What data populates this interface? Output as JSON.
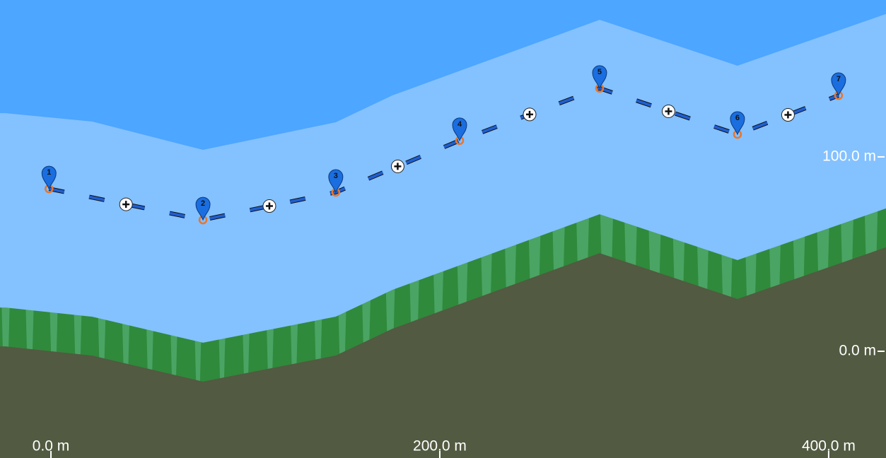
{
  "chart_data": {
    "type": "line",
    "labels": [
      "1",
      "2",
      "3",
      "4",
      "5",
      "6",
      "7"
    ],
    "x": [
      -1,
      78.2,
      146.5,
      210.2,
      282.2,
      353.1,
      405.1
    ],
    "values": [
      83.6,
      67.6,
      81.8,
      108.4,
      135.3,
      111.6,
      131.6
    ],
    "color": "#1f5fd1",
    "terrain": {
      "x": [
        -23.3,
        21.1,
        78.2,
        146.5,
        175.6,
        282.2,
        353.1,
        429.5
      ],
      "ground": [
        2.5,
        -2.2,
        -15.6,
        -2.2,
        11.6,
        50.5,
        26.9,
        53.5
      ],
      "canopy": [
        22.5,
        17.8,
        4.4,
        17.8,
        31.6,
        70.5,
        46.9,
        73.5
      ],
      "ceiling": [
        122.5,
        118.2,
        103.6,
        117.8,
        131.6,
        170.5,
        146.9,
        173.5
      ]
    },
    "xlim": [
      -26.2,
      429.5
    ],
    "ylim": [
      -54.9,
      180.7
    ],
    "xticks": [
      {
        "value": 0,
        "label": "0.0 m"
      },
      {
        "value": 200,
        "label": "200.0 m"
      },
      {
        "value": 400,
        "label": "400.0 m"
      }
    ],
    "yticks": [
      {
        "value": 0,
        "label": "0.0 m"
      },
      {
        "value": 100,
        "label": "100.0 m"
      }
    ]
  }
}
